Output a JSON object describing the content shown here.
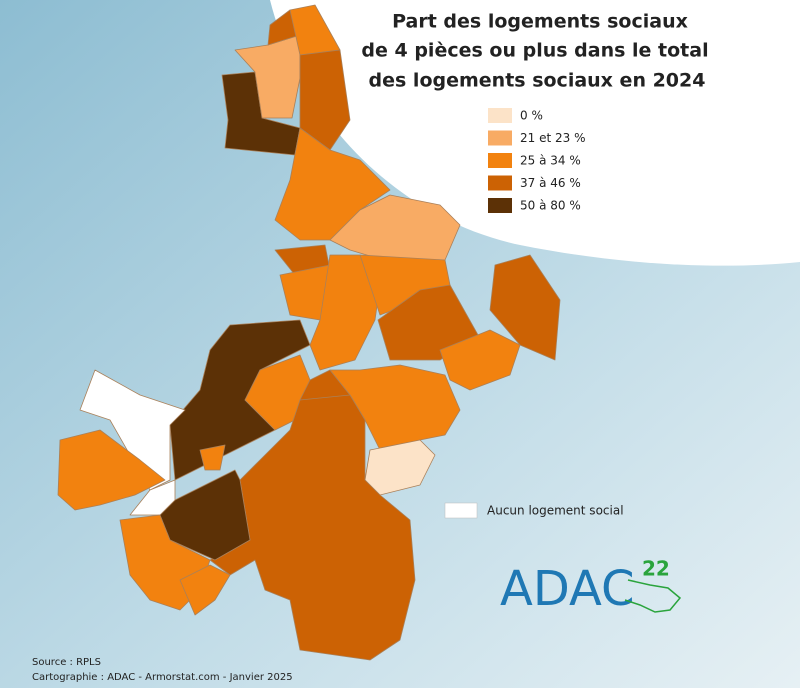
{
  "title": [
    "Part des logements sociaux",
    "de 4 pièces ou plus dans le total",
    "des logements sociaux en 2024"
  ],
  "legend": {
    "items": [
      {
        "label": "0 %",
        "color": "#fce3c8"
      },
      {
        "label": "21 et 23 %",
        "color": "#f8ab64"
      },
      {
        "label": "25 à 34 %",
        "color": "#f2820f"
      },
      {
        "label": "37 à 46 %",
        "color": "#cc6204"
      },
      {
        "label": "50 à 80 %",
        "color": "#5c3106"
      }
    ]
  },
  "no_data": {
    "label": "Aucun logement social",
    "color": "#ffffff"
  },
  "source": "Source : RPLS",
  "credit": "Cartographie : ADAC - Armorstat.com - Janvier 2025",
  "logo": {
    "text": "ADAC",
    "superscript": "22"
  }
}
